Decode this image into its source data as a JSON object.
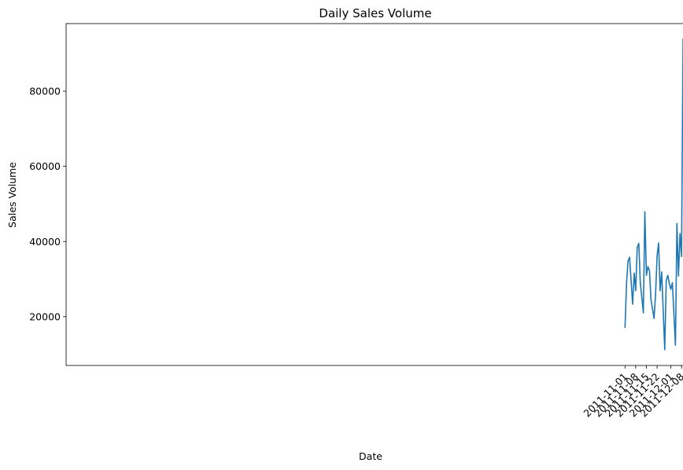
{
  "chart_data": {
    "type": "line",
    "title": "Daily Sales Volume",
    "xlabel": "Date",
    "ylabel": "Sales Volume",
    "x_tick_labels": [
      "2011-11-01",
      "2011-11-08",
      "2011-11-15",
      "2011-11-22",
      "2011-12-01",
      "2011-12-08"
    ],
    "x_tick_dates": [
      "2011-11-01",
      "2011-11-08",
      "2011-11-15",
      "2011-11-22",
      "2011-12-01",
      "2011-12-08"
    ],
    "xlim": [
      "2010-10-31",
      "2011-12-10"
    ],
    "y_ticks": [
      20000,
      40000,
      60000,
      80000
    ],
    "y_tick_labels": [
      "20000",
      "40000",
      "60000",
      "80000"
    ],
    "ylim": [
      7000,
      98000
    ],
    "grid": false,
    "line_color": "#1f77b4",
    "series": [
      {
        "x": [
          "2011-11-01",
          "2011-11-02",
          "2011-11-03",
          "2011-11-04",
          "2011-11-06",
          "2011-11-07",
          "2011-11-08",
          "2011-11-09",
          "2011-11-10",
          "2011-11-11",
          "2011-11-13",
          "2011-11-14",
          "2011-11-15",
          "2011-11-16",
          "2011-11-17",
          "2011-11-18",
          "2011-11-20",
          "2011-11-21",
          "2011-11-22",
          "2011-11-23",
          "2011-11-24",
          "2011-11-25",
          "2011-11-27",
          "2011-11-28",
          "2011-11-29",
          "2011-11-30",
          "2011-12-01",
          "2011-12-02",
          "2011-12-04",
          "2011-12-05",
          "2011-12-06",
          "2011-12-07",
          "2011-12-08",
          "2011-12-09"
        ],
        "y": [
          17000,
          29000,
          34800,
          35800,
          23300,
          31600,
          26900,
          38400,
          39500,
          29200,
          21000,
          47900,
          31000,
          33300,
          32200,
          24600,
          19500,
          25800,
          36200,
          39600,
          26900,
          31900,
          11200,
          29600,
          31000,
          28800,
          27300,
          29000,
          12400,
          44800,
          30800,
          42100,
          36000,
          94000
        ]
      }
    ]
  }
}
